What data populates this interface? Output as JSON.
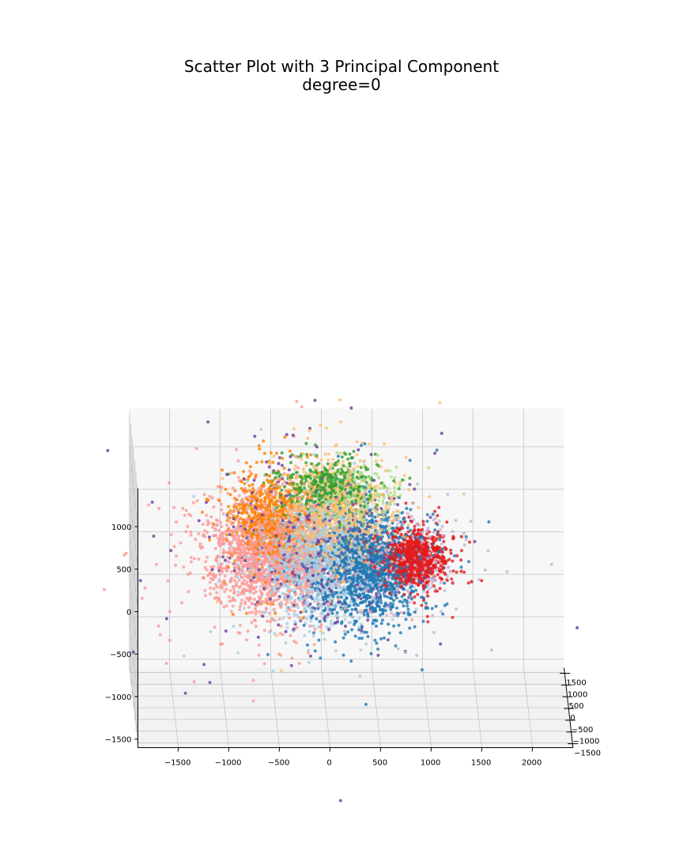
{
  "chart_data": {
    "type": "scatter",
    "subtype": "3d",
    "title": "Scatter Plot with 3 Principal Component",
    "subtitle": "degree=0",
    "xlabel": "",
    "ylabel": "",
    "zlabel": "",
    "x_ticks": [
      "−1500",
      "−1000",
      "−500",
      "0",
      "500",
      "1000",
      "1500",
      "2000"
    ],
    "y_ticks": [
      "−1500",
      "−1000",
      "−500",
      "0",
      "500",
      "1000",
      "1500"
    ],
    "z_ticks": [
      "−1500",
      "−1000",
      "−500",
      "0",
      "500",
      "1000"
    ],
    "xlim": [
      -1900,
      2400
    ],
    "ylim": [
      -1700,
      1700
    ],
    "zlim": [
      -1600,
      1450
    ],
    "grid": true,
    "view": {
      "elevation_deg": 10,
      "azimuth": "facing x axis"
    },
    "marker_size": 2,
    "series": [
      {
        "color": "#a6cee3",
        "center": [
          -100,
          0,
          150
        ],
        "spread": [
          260,
          250,
          330
        ],
        "count": 1400
      },
      {
        "color": "#1f78b4",
        "center": [
          400,
          0,
          50
        ],
        "spread": [
          260,
          250,
          290
        ],
        "count": 1400
      },
      {
        "color": "#fb9a99",
        "center": [
          -600,
          0,
          200
        ],
        "spread": [
          290,
          250,
          330
        ],
        "count": 1500
      },
      {
        "color": "#e31a1c",
        "center": [
          870,
          0,
          150
        ],
        "spread": [
          160,
          160,
          150
        ],
        "count": 900
      },
      {
        "color": "#ff7f00",
        "center": [
          -570,
          0,
          600
        ],
        "spread": [
          170,
          150,
          250
        ],
        "count": 700
      },
      {
        "color": "#fdbf6f",
        "center": [
          80,
          0,
          650
        ],
        "spread": [
          270,
          220,
          300
        ],
        "count": 1000
      },
      {
        "color": "#33a02c",
        "center": [
          0,
          0,
          1000
        ],
        "spread": [
          230,
          200,
          160
        ],
        "count": 450
      },
      {
        "color": "#b2df8a",
        "center": [
          300,
          0,
          900
        ],
        "spread": [
          250,
          200,
          200
        ],
        "count": 200
      },
      {
        "color": "#6a3d9a",
        "center": [
          -50,
          0,
          250
        ],
        "spread": [
          450,
          300,
          450
        ],
        "count": 450
      },
      {
        "color": "#cab2d6",
        "center": [
          800,
          0,
          100
        ],
        "spread": [
          300,
          250,
          250
        ],
        "count": 250
      }
    ]
  }
}
